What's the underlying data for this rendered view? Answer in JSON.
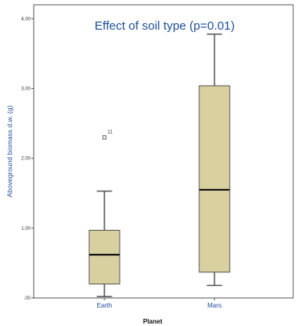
{
  "chart_data": {
    "type": "boxplot",
    "title": "Effect of soil type (p=0.01)",
    "xlabel": "Planet",
    "ylabel": "Aboveground biomass d.w. (g)",
    "ylim": [
      0,
      4.2
    ],
    "yticks": [
      0,
      1,
      2,
      3,
      4
    ],
    "ytick_labels": [
      ".00",
      "1.00",
      "2.00",
      "3.00",
      "4.00"
    ],
    "categories": [
      "Earth",
      "Mars"
    ],
    "boxes": [
      {
        "category": "Earth",
        "whisker_low": 0.02,
        "q1": 0.2,
        "median": 0.62,
        "q3": 0.97,
        "whisker_high": 1.53
      },
      {
        "category": "Mars",
        "whisker_low": 0.18,
        "q1": 0.37,
        "median": 1.55,
        "q3": 3.04,
        "whisker_high": 3.78
      }
    ],
    "outliers": [
      {
        "category": "Earth",
        "value": 2.3,
        "label": "11"
      }
    ],
    "colors": {
      "box_fill": "#d9d0a0",
      "box_stroke": "#555555",
      "median": "#111111",
      "title": "#1f4e9a",
      "axis_labels": "#1f4e9a"
    },
    "grid": false
  }
}
